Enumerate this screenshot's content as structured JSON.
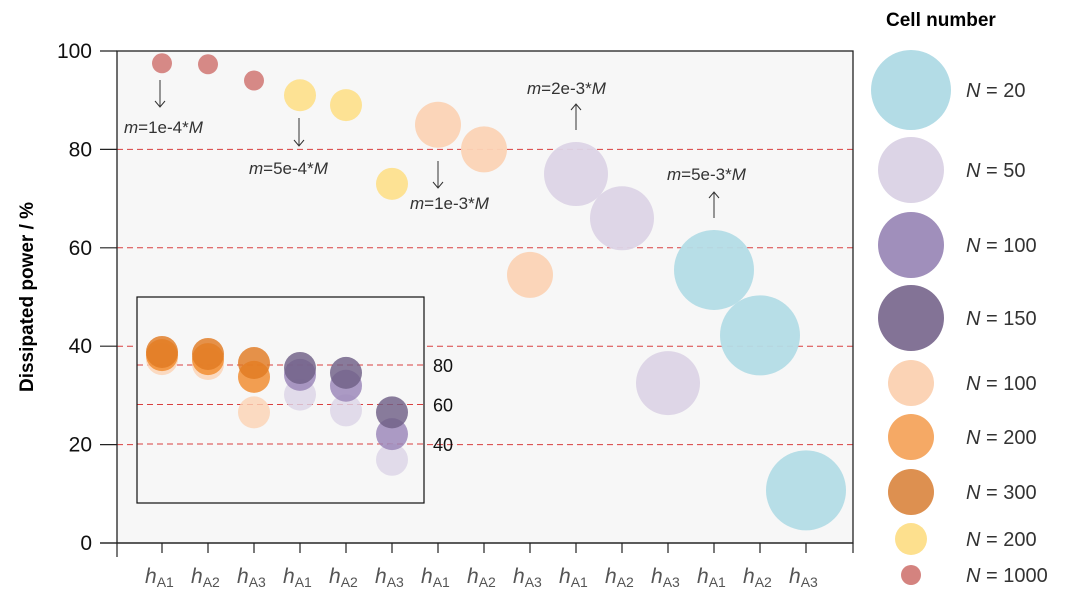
{
  "chart_data": {
    "type": "scatter",
    "title": "",
    "xlabel": "",
    "ylabel": "Dissipated power / %",
    "ylim": [
      0,
      100
    ],
    "yticks": [
      "0",
      "20",
      "40",
      "60",
      "80",
      "100"
    ],
    "gridlines_y": [
      20,
      40,
      60,
      80
    ],
    "grid": "dashed red horizontal",
    "x_categories": [
      "hA1",
      "hA2",
      "hA3",
      "hA1",
      "hA2",
      "hA3",
      "hA1",
      "hA2",
      "hA3",
      "hA1",
      "hA2",
      "hA3",
      "hA1",
      "hA2",
      "hA3"
    ],
    "x_tick_base": "h",
    "x_tick_subs": [
      "A1",
      "A2",
      "A3",
      "A1",
      "A2",
      "A3",
      "A1",
      "A2",
      "A3",
      "A1",
      "A2",
      "A3",
      "A1",
      "A2",
      "A3"
    ],
    "series": [
      {
        "name": "N = 1000",
        "color": "#d4837f",
        "size_rank": 1,
        "x_index": [
          0,
          1,
          2
        ],
        "values": [
          97.5,
          97.3,
          94
        ]
      },
      {
        "name": "N = 200 (yellow)",
        "color": "#fde08e",
        "size_rank": 2,
        "x_index": [
          3,
          4,
          5
        ],
        "values": [
          91,
          89,
          73
        ]
      },
      {
        "name": "N = 100 (peach)",
        "color": "#fbd3b5",
        "size_rank": 3,
        "x_index": [
          6,
          7,
          8
        ],
        "values": [
          85,
          80,
          54.5
        ]
      },
      {
        "name": "N = 50",
        "color": "#dcd4e6",
        "size_rank": 4,
        "x_index": [
          9,
          10,
          11
        ],
        "values": [
          75,
          66,
          32.5
        ]
      },
      {
        "name": "N = 20",
        "color": "#b3dce6",
        "size_rank": 5,
        "x_index": [
          12,
          13,
          14
        ],
        "values": [
          55.5,
          42.2,
          10.7
        ]
      }
    ],
    "annotations": [
      {
        "pre": "m",
        "text": "=1e-4*",
        "post": "M",
        "arrow": "down"
      },
      {
        "pre": "m",
        "text": "=5e-4*",
        "post": "M",
        "arrow": "down"
      },
      {
        "pre": "m",
        "text": "=1e-3*",
        "post": "M",
        "arrow": "down"
      },
      {
        "pre": "m",
        "text": "=2e-3*",
        "post": "M",
        "arrow": "up"
      },
      {
        "pre": "m",
        "text": "=5e-3*",
        "post": "M",
        "arrow": "up"
      }
    ],
    "inset": {
      "ylim": [
        20,
        100
      ],
      "yticks": [
        "80",
        "60",
        "40"
      ],
      "gridlines_y": [
        80,
        60,
        40
      ],
      "series": [
        {
          "name": "N = 100 (peach)",
          "color": "#fbd3b5",
          "x_index": [
            0,
            1,
            2
          ],
          "values": [
            83,
            80.5,
            56
          ]
        },
        {
          "name": "N = 200 (orange)",
          "color": "#f08a2c",
          "x_index": [
            0,
            1,
            2
          ],
          "values": [
            85,
            83,
            74
          ]
        },
        {
          "name": "N = 300",
          "color": "#e07a22",
          "x_index": [
            0,
            1,
            2
          ],
          "values": [
            86.6,
            85.6,
            81
          ]
        },
        {
          "name": "N = 50",
          "color": "#dcd4e6",
          "x_index": [
            3,
            4,
            5
          ],
          "values": [
            65,
            57,
            32
          ]
        },
        {
          "name": "N = 100 (purple)",
          "color": "#9a85b8",
          "x_index": [
            3,
            4,
            5
          ],
          "values": [
            75,
            69.5,
            45
          ]
        },
        {
          "name": "N = 150",
          "color": "#6f5f86",
          "x_index": [
            3,
            4,
            5
          ],
          "values": [
            78.5,
            76,
            56
          ]
        }
      ]
    },
    "legend": {
      "title": "Cell number",
      "placement": "right",
      "items": [
        {
          "pre": "N",
          "label": " = 20",
          "color": "#b3dce6",
          "size_rank": 5
        },
        {
          "pre": "N",
          "label": " = 50",
          "color": "#dcd4e6",
          "size_rank": 4
        },
        {
          "pre": "N",
          "label": " = 100",
          "color": "#a08fbb",
          "size_rank": 4
        },
        {
          "pre": "N",
          "label": " = 150",
          "color": "#837396",
          "size_rank": 4
        },
        {
          "pre": "N",
          "label": " = 100",
          "color": "#fbd3b5",
          "size_rank": 3
        },
        {
          "pre": "N",
          "label": " = 200",
          "color": "#f5a965",
          "size_rank": 3
        },
        {
          "pre": "N",
          "label": " = 300",
          "color": "#dd9050",
          "size_rank": 3
        },
        {
          "pre": "N",
          "label": " = 200",
          "color": "#fde08e",
          "size_rank": 2
        },
        {
          "pre": "N",
          "label": " = 1000",
          "color": "#d4837f",
          "size_rank": 1
        }
      ]
    }
  }
}
